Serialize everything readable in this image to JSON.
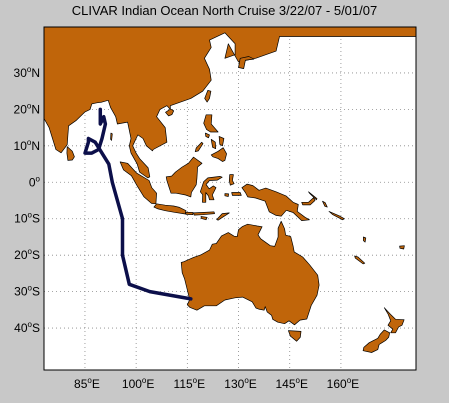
{
  "title": "CLIVAR Indian Ocean North Cruise 3/22/07 - 5/01/07",
  "y_ticks": [
    {
      "deg": "30",
      "hemi": "N"
    },
    {
      "deg": "20",
      "hemi": "N"
    },
    {
      "deg": "10",
      "hemi": "N"
    },
    {
      "deg": "0",
      "hemi": ""
    },
    {
      "deg": "10",
      "hemi": "S"
    },
    {
      "deg": "20",
      "hemi": "S"
    },
    {
      "deg": "30",
      "hemi": "S"
    },
    {
      "deg": "40",
      "hemi": "S"
    }
  ],
  "x_ticks": [
    {
      "deg": "85",
      "hemi": "E"
    },
    {
      "deg": "100",
      "hemi": "E"
    },
    {
      "deg": "115",
      "hemi": "E"
    },
    {
      "deg": "130",
      "hemi": "E"
    },
    {
      "deg": "145",
      "hemi": "E"
    },
    {
      "deg": "160",
      "hemi": "E"
    }
  ],
  "colors": {
    "land": "#c0650a",
    "ocean": "#ffffff",
    "track": "#0c0f4a",
    "grid": "#888888",
    "figure_bg": "#c8c8c8"
  },
  "cruise_track": {
    "start": "3/22/07",
    "end": "5/01/07",
    "lonlat": [
      [
        116,
        -32
      ],
      [
        104,
        -30
      ],
      [
        98,
        -28
      ],
      [
        96,
        -20
      ],
      [
        96,
        -10
      ],
      [
        93,
        0
      ],
      [
        92,
        5
      ],
      [
        88,
        11
      ],
      [
        86,
        12
      ],
      [
        86,
        11
      ],
      [
        85,
        8
      ],
      [
        87,
        8
      ],
      [
        89,
        9
      ],
      [
        90,
        12
      ],
      [
        91,
        16
      ],
      [
        90.5,
        18
      ],
      [
        89.5,
        16
      ],
      [
        89.5,
        20
      ]
    ]
  }
}
